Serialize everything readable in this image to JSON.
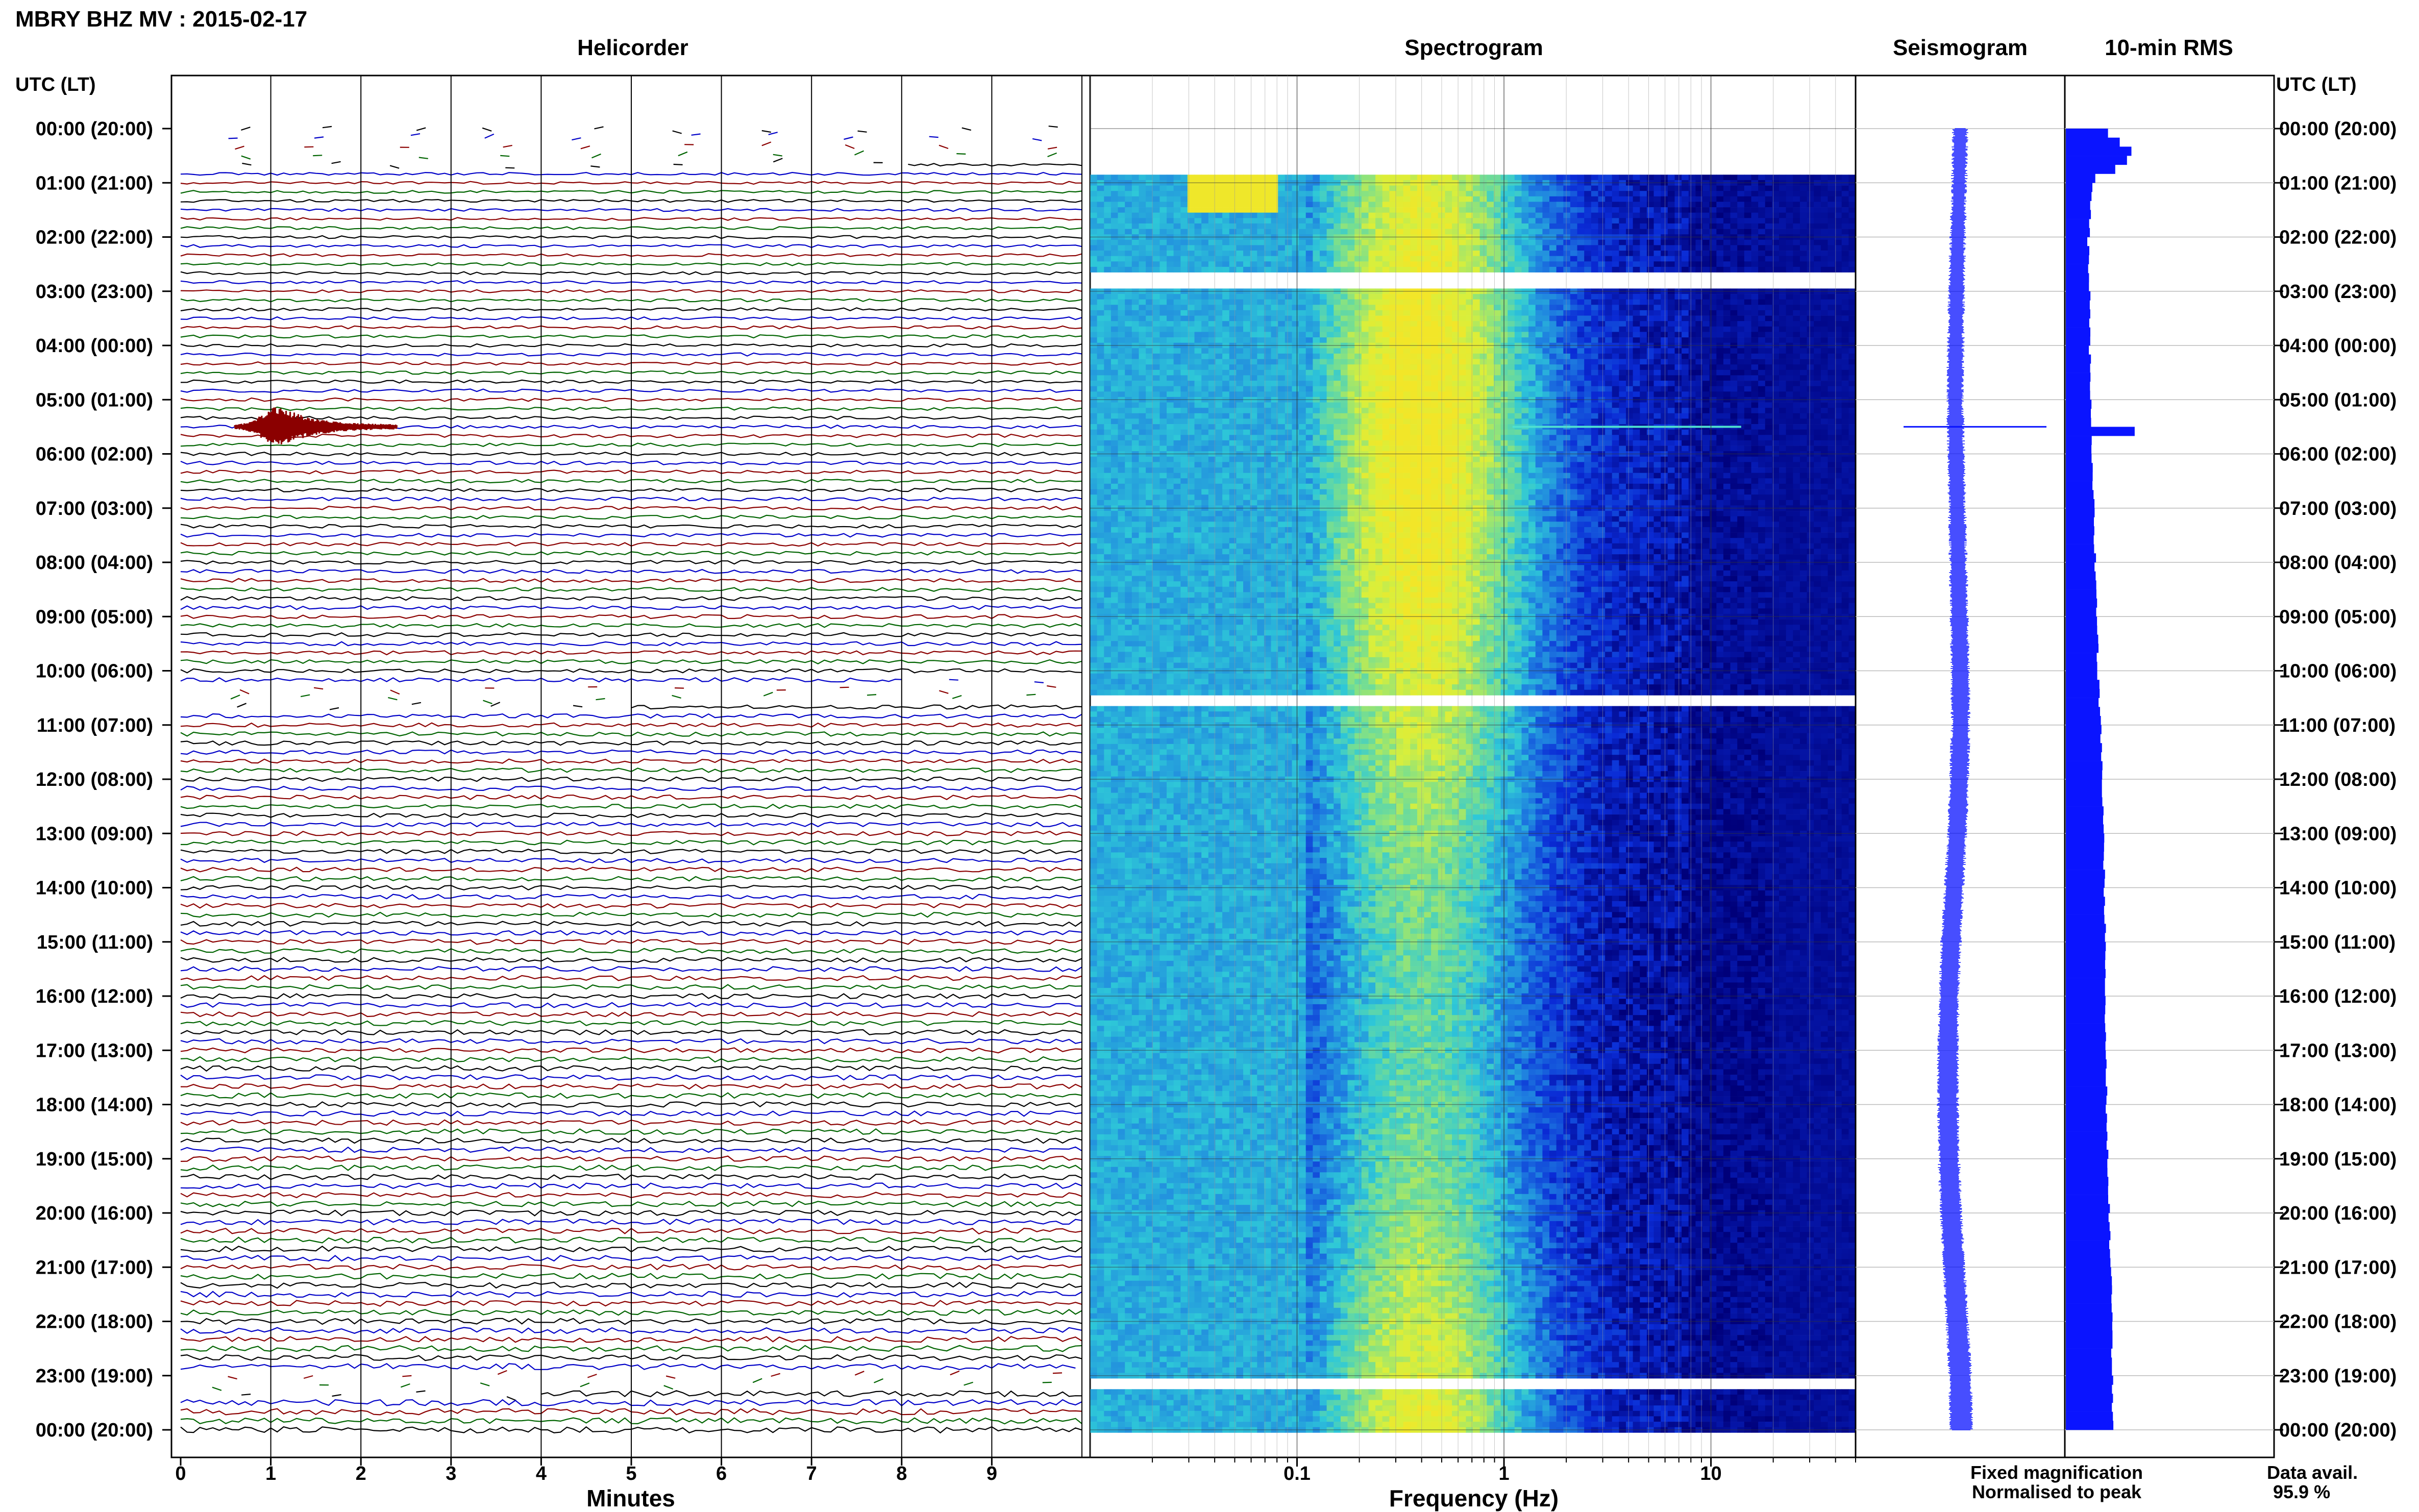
{
  "title": "MBRY BHZ MV : 2015-02-17",
  "panels": {
    "helicorder": "Helicorder",
    "spectrogram": "Spectrogram",
    "seismogram": "Seismogram",
    "rms": "10-min RMS"
  },
  "time_axis_label": "UTC (LT)",
  "time_labels": [
    "00:00 (20:00)",
    "01:00 (21:00)",
    "02:00 (22:00)",
    "03:00 (23:00)",
    "04:00 (00:00)",
    "05:00 (01:00)",
    "06:00 (02:00)",
    "07:00 (03:00)",
    "08:00 (04:00)",
    "09:00 (05:00)",
    "10:00 (06:00)",
    "11:00 (07:00)",
    "12:00 (08:00)",
    "13:00 (09:00)",
    "14:00 (10:00)",
    "15:00 (11:00)",
    "16:00 (12:00)",
    "17:00 (13:00)",
    "18:00 (14:00)",
    "19:00 (15:00)",
    "20:00 (16:00)",
    "21:00 (17:00)",
    "22:00 (18:00)",
    "23:00 (19:00)",
    "00:00 (20:00)"
  ],
  "legend": {
    "fixed": "Fixed magnification",
    "fixed_color": "#1010ff",
    "normalised": "Normalised to peak",
    "normalised_color": "#ff1010"
  },
  "data_avail": {
    "label": "Data avail.",
    "value": "95.9 %"
  },
  "colors": {
    "series": "#0a14ff",
    "event": "#8b0000",
    "trace_cycle": [
      "#000000",
      "#0000c8",
      "#8b0000",
      "#006400"
    ]
  },
  "chart_data": [
    {
      "type": "line",
      "title": "Helicorder",
      "xlabel": "Minutes",
      "x_ticks": [
        0,
        1,
        2,
        3,
        4,
        5,
        6,
        7,
        8,
        9
      ],
      "xlim": [
        0,
        10
      ],
      "ylabel": "UTC (LT)",
      "rows_per_hour": 6,
      "gaps_utc_hours": [
        [
          0.0,
          0.8
        ],
        [
          10.3,
          10.75
        ],
        [
          23.0,
          23.4
        ]
      ],
      "events": [
        {
          "utc": "05:30",
          "minute_start": 0.6,
          "minute_end": 2.4,
          "peak_minute": 1.1
        }
      ]
    },
    {
      "type": "heatmap",
      "title": "Spectrogram",
      "xlabel": "Frequency (Hz)",
      "x_scale": "log",
      "x_ticks": [
        0.1,
        1,
        10
      ],
      "x_tick_labels": [
        "0.1",
        "1",
        "10"
      ],
      "xlim": [
        0.01,
        50
      ],
      "ylabel": "UTC (LT)",
      "data_gaps_utc_hours": [
        0.85,
        0.8,
        0.5
      ],
      "gap_rows_utc_hours": [
        2.75,
        10.5,
        23.1
      ],
      "colormap": [
        "#00007a",
        "#0a2bd6",
        "#1e7de0",
        "#2ec8d8",
        "#7ee08a",
        "#d8ef3c",
        "#f2e628"
      ]
    },
    {
      "type": "line",
      "title": "Seismogram",
      "ylabel": "UTC (LT)",
      "envelope_hours": [
        0,
        1,
        2,
        3,
        4,
        5,
        6,
        7,
        8,
        9,
        10,
        11,
        12,
        13,
        14,
        15,
        16,
        17,
        18,
        19,
        20,
        21,
        22,
        23,
        24
      ],
      "envelope_offset": [
        0.0,
        -0.05,
        -0.12,
        -0.18,
        -0.22,
        -0.25,
        -0.2,
        -0.15,
        -0.1,
        -0.05,
        0.0,
        0.02,
        -0.05,
        -0.15,
        -0.3,
        -0.45,
        -0.55,
        -0.6,
        -0.6,
        -0.55,
        -0.45,
        -0.3,
        -0.15,
        0.0,
        0.05
      ],
      "spike_utc": "05:30"
    },
    {
      "type": "bar",
      "title": "10-min RMS",
      "orientation": "horizontal",
      "bin_minutes": 10,
      "hour_values": [
        0.62,
        0.38,
        0.32,
        0.34,
        0.34,
        0.36,
        0.38,
        0.4,
        0.42,
        0.44,
        0.46,
        0.5,
        0.52,
        0.54,
        0.55,
        0.56,
        0.56,
        0.57,
        0.58,
        0.6,
        0.62,
        0.64,
        0.66,
        0.66,
        0.67
      ],
      "peaks": [
        {
          "utc": "00:30",
          "value": 0.92
        },
        {
          "utc": "05:30",
          "value": 0.98
        }
      ],
      "xlim": [
        0,
        1
      ]
    }
  ]
}
